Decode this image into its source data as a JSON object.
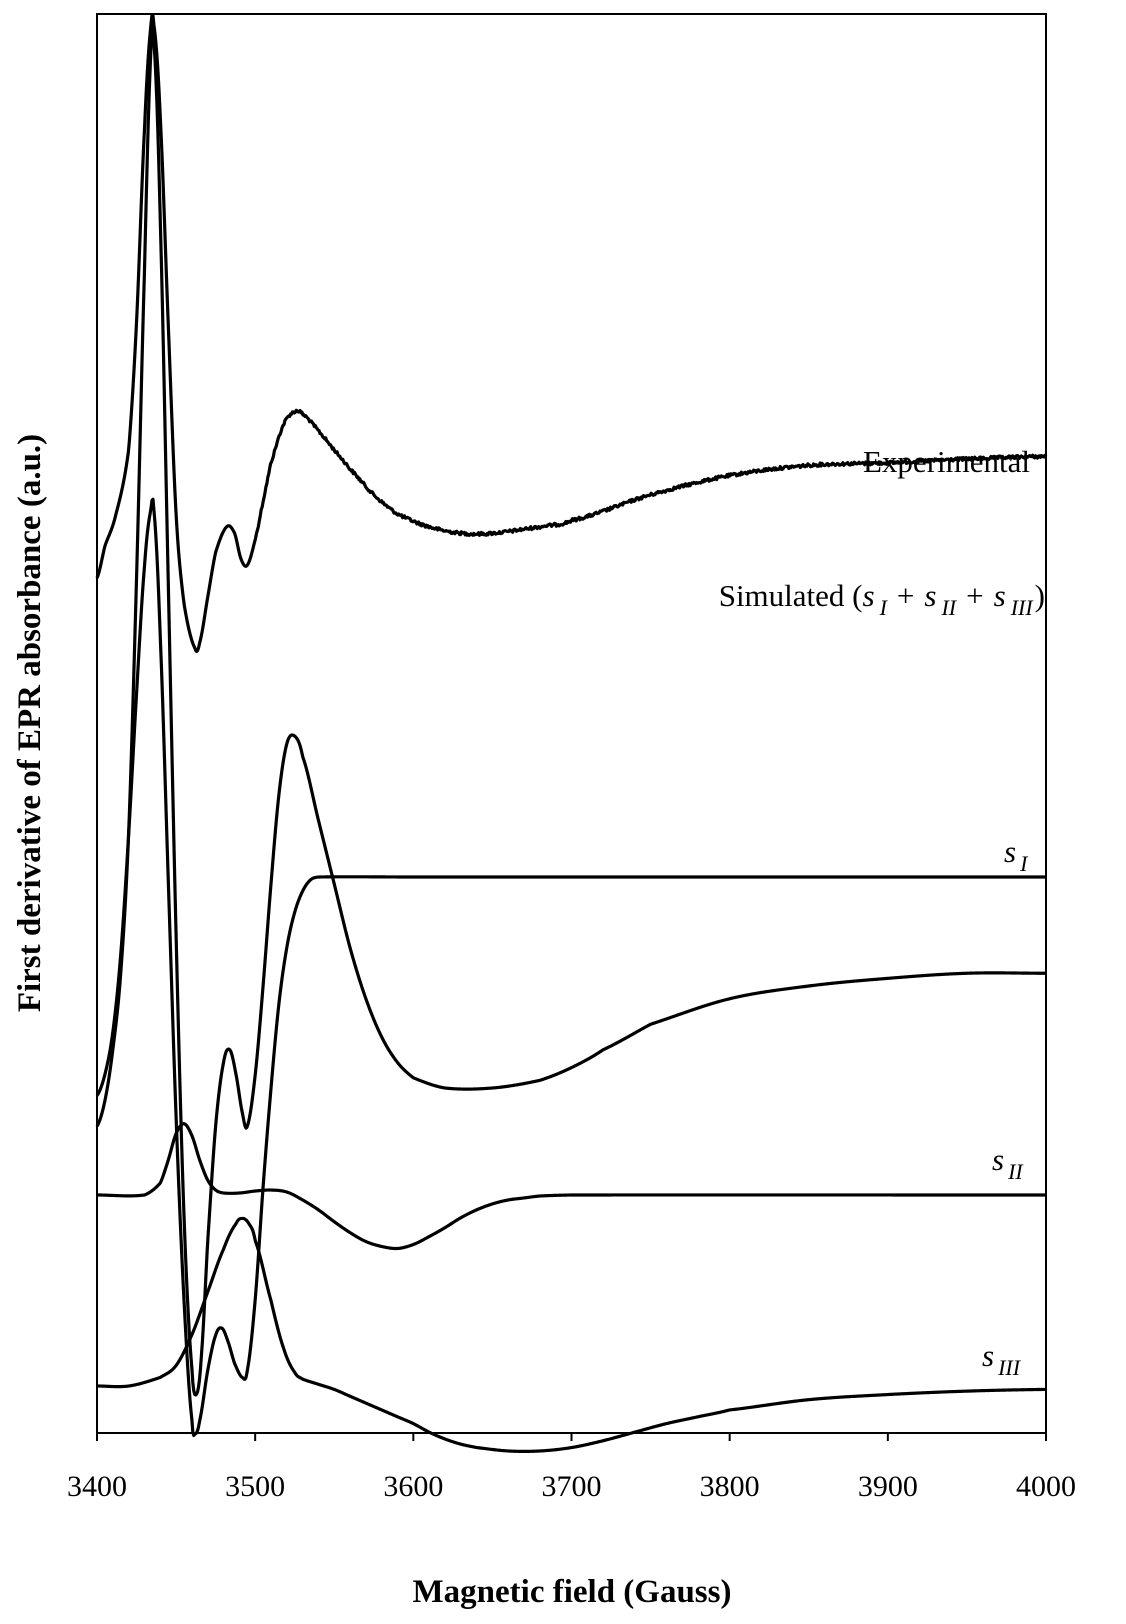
{
  "chart_data": {
    "type": "line",
    "title": "",
    "xlabel": "Magnetic field (Gauss)",
    "ylabel": "First derivative of EPR absorbance (a.u.)",
    "xlim": [
      3400,
      4000
    ],
    "xticks": [
      3400,
      3500,
      3600,
      3700,
      3800,
      3900,
      4000
    ],
    "grid": false,
    "yticks_shown": false,
    "line_color": "#000000",
    "series_labels": {
      "experimental": "Experimental",
      "simulated_prefix": "Simulated (",
      "simulated_suffix": ")",
      "s_letter": "s",
      "plus": "+",
      "sub_I": "I",
      "sub_II": "II",
      "sub_III": "III"
    },
    "series": [
      {
        "key": "experimental",
        "offset": 0,
        "noisy": true,
        "points": [
          [
            3400,
            0.0
          ],
          [
            3405,
            0.25
          ],
          [
            3412,
            0.5
          ],
          [
            3420,
            1.0
          ],
          [
            3425,
            2.0
          ],
          [
            3430,
            3.5
          ],
          [
            3434,
            4.3
          ],
          [
            3436,
            4.32
          ],
          [
            3440,
            3.6
          ],
          [
            3445,
            2.0
          ],
          [
            3450,
            0.5
          ],
          [
            3455,
            -0.2
          ],
          [
            3462,
            -0.55
          ],
          [
            3465,
            -0.5
          ],
          [
            3470,
            -0.15
          ],
          [
            3475,
            0.2
          ],
          [
            3482,
            0.4
          ],
          [
            3487,
            0.35
          ],
          [
            3491,
            0.15
          ],
          [
            3495,
            0.1
          ],
          [
            3500,
            0.3
          ],
          [
            3505,
            0.6
          ],
          [
            3510,
            0.9
          ],
          [
            3518,
            1.2
          ],
          [
            3525,
            1.3
          ],
          [
            3530,
            1.28
          ],
          [
            3540,
            1.15
          ],
          [
            3550,
            1.0
          ],
          [
            3560,
            0.85
          ],
          [
            3575,
            0.65
          ],
          [
            3590,
            0.5
          ],
          [
            3610,
            0.4
          ],
          [
            3630,
            0.35
          ],
          [
            3650,
            0.35
          ],
          [
            3680,
            0.4
          ],
          [
            3700,
            0.45
          ],
          [
            3750,
            0.65
          ],
          [
            3800,
            0.8
          ],
          [
            3850,
            0.88
          ],
          [
            3900,
            0.9
          ],
          [
            3950,
            0.93
          ],
          [
            4000,
            0.95
          ]
        ]
      },
      {
        "key": "simulated",
        "offset": 0,
        "noisy": false,
        "points": [
          [
            3400,
            -2.15
          ],
          [
            3405,
            -2.05
          ],
          [
            3410,
            -1.85
          ],
          [
            3415,
            -1.55
          ],
          [
            3420,
            -1.0
          ],
          [
            3425,
            0.0
          ],
          [
            3430,
            1.2
          ],
          [
            3434,
            2.05
          ],
          [
            3436,
            2.1
          ],
          [
            3440,
            1.4
          ],
          [
            3445,
            0.0
          ],
          [
            3450,
            -1.4
          ],
          [
            3455,
            -2.5
          ],
          [
            3460,
            -3.1
          ],
          [
            3463,
            -3.2
          ],
          [
            3466,
            -3.05
          ],
          [
            3470,
            -2.6
          ],
          [
            3475,
            -2.15
          ],
          [
            3480,
            -1.9
          ],
          [
            3484,
            -1.85
          ],
          [
            3488,
            -1.95
          ],
          [
            3492,
            -2.1
          ],
          [
            3495,
            -2.15
          ],
          [
            3500,
            -1.95
          ],
          [
            3505,
            -1.6
          ],
          [
            3510,
            -1.2
          ],
          [
            3515,
            -0.85
          ],
          [
            3520,
            -0.65
          ],
          [
            3525,
            -0.62
          ],
          [
            3530,
            -0.7
          ],
          [
            3540,
            -0.95
          ],
          [
            3550,
            -1.2
          ],
          [
            3560,
            -1.45
          ],
          [
            3570,
            -1.65
          ],
          [
            3580,
            -1.8
          ],
          [
            3590,
            -1.9
          ],
          [
            3600,
            -1.96
          ],
          [
            3620,
            -2.0
          ],
          [
            3650,
            -2.0
          ],
          [
            3680,
            -1.97
          ],
          [
            3700,
            -1.92
          ],
          [
            3720,
            -1.85
          ],
          [
            3750,
            -1.75
          ],
          [
            3800,
            -1.65
          ],
          [
            3850,
            -1.6
          ],
          [
            3900,
            -1.57
          ],
          [
            3950,
            -1.55
          ],
          [
            4000,
            -1.55
          ]
        ]
      },
      {
        "key": "s_I",
        "offset": 0,
        "noisy": false,
        "points": [
          [
            3400,
            -1.55
          ],
          [
            3405,
            -1.4
          ],
          [
            3410,
            -1.1
          ],
          [
            3415,
            -0.55
          ],
          [
            3420,
            0.3
          ],
          [
            3425,
            1.3
          ],
          [
            3430,
            2.2
          ],
          [
            3434,
            2.6
          ],
          [
            3436,
            2.6
          ],
          [
            3440,
            1.7
          ],
          [
            3445,
            0.0
          ],
          [
            3450,
            -1.7
          ],
          [
            3455,
            -3.0
          ],
          [
            3460,
            -3.85
          ],
          [
            3462,
            -3.95
          ],
          [
            3465,
            -3.85
          ],
          [
            3470,
            -3.5
          ],
          [
            3475,
            -3.25
          ],
          [
            3479,
            -3.2
          ],
          [
            3483,
            -3.3
          ],
          [
            3487,
            -3.45
          ],
          [
            3492,
            -3.55
          ],
          [
            3495,
            -3.5
          ],
          [
            3500,
            -3.0
          ],
          [
            3505,
            -2.2
          ],
          [
            3510,
            -1.5
          ],
          [
            3515,
            -0.9
          ],
          [
            3520,
            -0.5
          ],
          [
            3525,
            -0.25
          ],
          [
            3530,
            -0.1
          ],
          [
            3535,
            -0.02
          ],
          [
            3540,
            0.0
          ],
          [
            3600,
            0.0
          ],
          [
            4000,
            0.0
          ]
        ]
      },
      {
        "key": "s_II",
        "offset": 0,
        "noisy": false,
        "points": [
          [
            3400,
            0.0
          ],
          [
            3430,
            0.0
          ],
          [
            3440,
            0.12
          ],
          [
            3445,
            0.35
          ],
          [
            3450,
            0.62
          ],
          [
            3455,
            0.72
          ],
          [
            3460,
            0.6
          ],
          [
            3465,
            0.35
          ],
          [
            3470,
            0.15
          ],
          [
            3475,
            0.05
          ],
          [
            3480,
            0.02
          ],
          [
            3490,
            0.02
          ],
          [
            3500,
            0.04
          ],
          [
            3510,
            0.05
          ],
          [
            3520,
            0.03
          ],
          [
            3530,
            -0.05
          ],
          [
            3540,
            -0.15
          ],
          [
            3550,
            -0.27
          ],
          [
            3560,
            -0.38
          ],
          [
            3570,
            -0.47
          ],
          [
            3580,
            -0.52
          ],
          [
            3590,
            -0.54
          ],
          [
            3600,
            -0.5
          ],
          [
            3610,
            -0.42
          ],
          [
            3620,
            -0.33
          ],
          [
            3630,
            -0.23
          ],
          [
            3640,
            -0.15
          ],
          [
            3650,
            -0.09
          ],
          [
            3660,
            -0.05
          ],
          [
            3670,
            -0.03
          ],
          [
            3680,
            -0.01
          ],
          [
            3700,
            0.0
          ],
          [
            4000,
            0.0
          ]
        ]
      },
      {
        "key": "s_III",
        "offset": 0,
        "noisy": false,
        "points": [
          [
            3400,
            0.0
          ],
          [
            3420,
            0.0
          ],
          [
            3440,
            0.05
          ],
          [
            3450,
            0.12
          ],
          [
            3460,
            0.3
          ],
          [
            3470,
            0.55
          ],
          [
            3480,
            0.8
          ],
          [
            3488,
            0.95
          ],
          [
            3492,
            0.98
          ],
          [
            3496,
            0.95
          ],
          [
            3500,
            0.85
          ],
          [
            3510,
            0.5
          ],
          [
            3518,
            0.22
          ],
          [
            3525,
            0.08
          ],
          [
            3530,
            0.04
          ],
          [
            3540,
            0.01
          ],
          [
            3550,
            -0.02
          ],
          [
            3560,
            -0.06
          ],
          [
            3570,
            -0.1
          ],
          [
            3580,
            -0.14
          ],
          [
            3590,
            -0.18
          ],
          [
            3600,
            -0.22
          ],
          [
            3610,
            -0.27
          ],
          [
            3620,
            -0.31
          ],
          [
            3630,
            -0.34
          ],
          [
            3640,
            -0.36
          ],
          [
            3660,
            -0.38
          ],
          [
            3680,
            -0.38
          ],
          [
            3700,
            -0.36
          ],
          [
            3720,
            -0.32
          ],
          [
            3740,
            -0.27
          ],
          [
            3760,
            -0.22
          ],
          [
            3780,
            -0.18
          ],
          [
            3800,
            -0.14
          ],
          [
            3850,
            -0.08
          ],
          [
            3900,
            -0.05
          ],
          [
            3950,
            -0.03
          ],
          [
            4000,
            -0.02
          ]
        ]
      }
    ]
  }
}
